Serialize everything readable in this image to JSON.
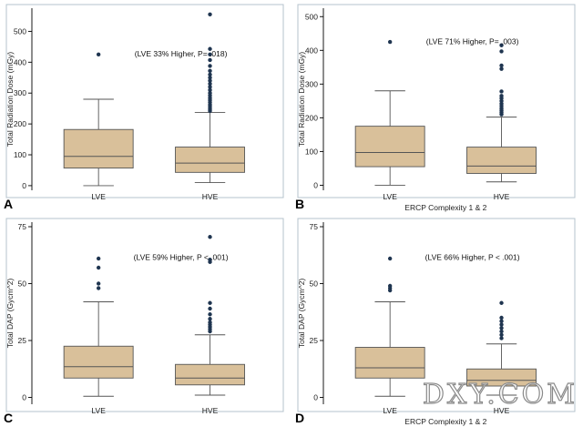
{
  "colors": {
    "box_fill": "#d9c09a",
    "outlier": "#1f3550",
    "frame": "#b5c3cc"
  },
  "watermark": "DXY.COM",
  "chart_data": [
    {
      "id": "A",
      "type": "boxplot",
      "panel_letter": "A",
      "ylabel": "Total Radiation Dose (mGy)",
      "xlabel": "",
      "ylim": [
        -15,
        575
      ],
      "yticks": [
        0,
        100,
        200,
        300,
        400,
        500
      ],
      "categories": [
        "LVE",
        "HVE"
      ],
      "annotation": "(LVE 33% Higher, P= .018)",
      "annotation_anchor": {
        "cat": 0.6,
        "y": 418
      },
      "boxes": [
        {
          "name": "LVE",
          "min": 0,
          "q1": 57,
          "median": 95,
          "q3": 182,
          "max": 280,
          "outliers": [
            425
          ]
        },
        {
          "name": "HVE",
          "min": 10,
          "q1": 43,
          "median": 73,
          "q3": 125,
          "max": 237,
          "outliers": [
            555,
            443,
            425,
            407,
            388,
            372,
            360,
            350,
            340,
            330,
            320,
            310,
            300,
            292,
            284,
            277,
            270,
            262,
            255,
            248,
            242
          ]
        }
      ]
    },
    {
      "id": "B",
      "type": "boxplot",
      "panel_letter": "B",
      "ylabel": "Total Radiation Dose (mGy)",
      "xlabel": "ERCP Complexity 1 & 2",
      "ylim": [
        -15,
        525
      ],
      "yticks": [
        0,
        100,
        200,
        300,
        400,
        500
      ],
      "categories": [
        "LVE",
        "HVE"
      ],
      "annotation": "(LVE 71% Higher, P= .003)",
      "annotation_anchor": {
        "cat": 0.6,
        "y": 418
      },
      "boxes": [
        {
          "name": "LVE",
          "min": 0,
          "q1": 55,
          "median": 97,
          "q3": 175,
          "max": 280,
          "outliers": [
            425
          ]
        },
        {
          "name": "HVE",
          "min": 10,
          "q1": 35,
          "median": 57,
          "q3": 113,
          "max": 202,
          "outliers": [
            415,
            397,
            355,
            345,
            278,
            265,
            258,
            250,
            242,
            235,
            228,
            222,
            216,
            210
          ]
        }
      ]
    },
    {
      "id": "C",
      "type": "boxplot",
      "panel_letter": "C",
      "ylabel": "Total DAP (Gycm^2)",
      "xlabel": "",
      "ylim": [
        -3,
        77
      ],
      "yticks": [
        0,
        25,
        50,
        75
      ],
      "categories": [
        "LVE",
        "HVE"
      ],
      "annotation": "(LVE 59% Higher, P < .001)",
      "annotation_anchor": {
        "cat": 0.6,
        "y": 60.5
      },
      "boxes": [
        {
          "name": "LVE",
          "min": 0.5,
          "q1": 8.5,
          "median": 13.5,
          "q3": 22.5,
          "max": 42,
          "outliers": [
            61,
            57,
            50,
            48
          ]
        },
        {
          "name": "HVE",
          "min": 1,
          "q1": 5.5,
          "median": 8.5,
          "q3": 14.5,
          "max": 27.5,
          "outliers": [
            70.5,
            60.5,
            59.5,
            41.5,
            39,
            36.5,
            34.5,
            33,
            32,
            31,
            30,
            29
          ]
        }
      ]
    },
    {
      "id": "D",
      "type": "boxplot",
      "panel_letter": "D",
      "ylabel": "Total DAP (Gycm^2)",
      "xlabel": "ERCP Complexity 1 & 2",
      "ylim": [
        -3,
        77
      ],
      "yticks": [
        0,
        25,
        50,
        75
      ],
      "categories": [
        "LVE",
        "HVE"
      ],
      "annotation": "(LVE 66% Higher, P < .001)",
      "annotation_anchor": {
        "cat": 0.6,
        "y": 60.5
      },
      "boxes": [
        {
          "name": "LVE",
          "min": 0.5,
          "q1": 8.5,
          "median": 13,
          "q3": 22,
          "max": 42,
          "outliers": [
            61,
            49,
            48,
            47
          ]
        },
        {
          "name": "HVE",
          "min": 1,
          "q1": 5,
          "median": 7.5,
          "q3": 12.5,
          "max": 23.5,
          "outliers": [
            41.5,
            35,
            33.5,
            32,
            30.5,
            29,
            27.5,
            26
          ]
        }
      ]
    }
  ]
}
